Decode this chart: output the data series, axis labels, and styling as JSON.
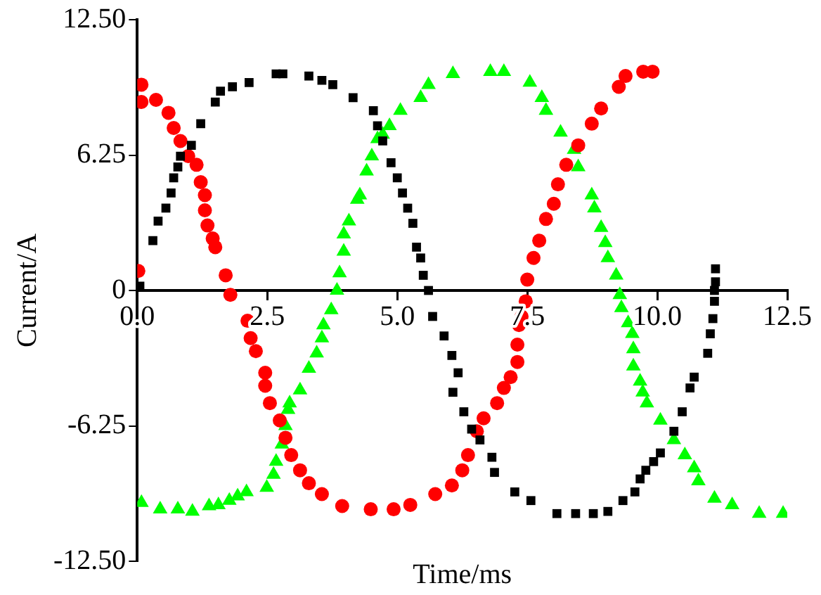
{
  "chart_data": {
    "type": "scatter",
    "xlabel": "Time/ms",
    "ylabel": "Current/A",
    "xlim": [
      0,
      12.5
    ],
    "ylim": [
      -12.5,
      12.5
    ],
    "xticks": [
      {
        "value": 0,
        "label": "0.0"
      },
      2.5,
      {
        "value": 5,
        "label": "5.0"
      },
      7.5,
      {
        "value": 10,
        "label": "10.0"
      },
      12.5
    ],
    "yticks": [
      {
        "value": -12.5,
        "label": "-12.50"
      },
      -6.25,
      0,
      6.25,
      {
        "value": 12.5,
        "label": "12.50"
      }
    ],
    "grid": false,
    "legend": false,
    "series": [
      {
        "color": "#000000",
        "marker": "square",
        "x": [
          0.05,
          0.3,
          0.4,
          0.55,
          0.65,
          0.7,
          0.78,
          0.83,
          1.04,
          1.22,
          1.5,
          1.6,
          1.83,
          2.15,
          2.67,
          2.8,
          3.3,
          3.55,
          3.76,
          4.15,
          4.54,
          4.62,
          4.72,
          4.88,
          5.0,
          5.1,
          5.2,
          5.3,
          5.37,
          5.45,
          5.5,
          5.6,
          5.68,
          5.9,
          6.05,
          6.17,
          6.07,
          6.28,
          6.43,
          6.59,
          6.82,
          6.87,
          7.26,
          7.57,
          8.07,
          8.43,
          8.77,
          9.05,
          9.34,
          9.57,
          9.67,
          9.78,
          9.93,
          10.06,
          10.32,
          10.48,
          10.63,
          10.71,
          10.97,
          11.02,
          11.07,
          11.1,
          11.1,
          11.12,
          11.12
        ],
        "values": [
          0.2,
          2.3,
          3.2,
          3.8,
          4.5,
          5.2,
          5.7,
          6.2,
          6.7,
          7.7,
          8.7,
          9.2,
          9.4,
          9.6,
          10.0,
          10.0,
          9.9,
          9.7,
          9.5,
          8.9,
          8.3,
          7.6,
          6.9,
          5.9,
          5.2,
          4.5,
          3.8,
          3.1,
          2.0,
          1.5,
          0.7,
          0,
          -1.2,
          -2.1,
          -3.0,
          -3.8,
          -4.7,
          -5.6,
          -6.4,
          -6.9,
          -7.7,
          -8.4,
          -9.3,
          -9.7,
          -10.3,
          -10.3,
          -10.3,
          -10.2,
          -9.7,
          -9.3,
          -8.7,
          -8.3,
          -7.9,
          -7.5,
          -6.5,
          -5.6,
          -4.5,
          -4.0,
          -2.9,
          -2.0,
          -1.3,
          -0.5,
          0,
          0.4,
          1.0
        ]
      },
      {
        "color": "#ff0000",
        "marker": "circle",
        "x": [
          0.02,
          0.08,
          0.08,
          0.36,
          0.6,
          0.7,
          0.83,
          0.98,
          1.14,
          1.22,
          1.3,
          1.3,
          1.35,
          1.45,
          1.5,
          1.7,
          1.79,
          2.12,
          2.18,
          2.28,
          2.46,
          2.46,
          2.55,
          2.74,
          2.85,
          2.96,
          3.13,
          3.3,
          3.55,
          3.94,
          4.49,
          4.93,
          5.25,
          5.73,
          6.05,
          6.25,
          6.36,
          6.53,
          6.66,
          6.92,
          7.05,
          7.18,
          7.31,
          7.31,
          7.34,
          7.39,
          7.47,
          7.5,
          7.62,
          7.73,
          7.86,
          8.01,
          8.09,
          8.25,
          8.48,
          8.74,
          8.92,
          9.26,
          9.39,
          9.73,
          9.91
        ],
        "values": [
          0.9,
          9.5,
          8.7,
          8.8,
          8.2,
          7.5,
          6.9,
          6.2,
          5.8,
          5.0,
          4.4,
          3.7,
          3.0,
          2.4,
          2.0,
          0.7,
          -0.2,
          -1.4,
          -2.2,
          -2.8,
          -3.8,
          -4.4,
          -5.2,
          -6.0,
          -6.8,
          -7.6,
          -8.3,
          -8.9,
          -9.4,
          -9.95,
          -10.1,
          -10.1,
          -9.9,
          -9.4,
          -9.0,
          -8.3,
          -7.6,
          -6.5,
          -5.9,
          -5.2,
          -4.5,
          -4.0,
          -3.3,
          -2.5,
          -1.6,
          -1.2,
          -0.5,
          0.5,
          1.5,
          2.3,
          3.3,
          4.0,
          4.9,
          5.8,
          6.7,
          7.7,
          8.4,
          9.4,
          9.9,
          10.1,
          10.1
        ]
      },
      {
        "color": "#00ff00",
        "marker": "triangle",
        "x": [
          0.08,
          0.44,
          0.78,
          1.06,
          1.38,
          1.56,
          1.77,
          1.93,
          2.1,
          2.49,
          2.62,
          2.67,
          2.78,
          2.85,
          2.9,
          2.93,
          3.13,
          3.3,
          3.45,
          3.55,
          3.58,
          3.73,
          3.84,
          3.89,
          3.97,
          3.97,
          4.07,
          4.23,
          4.28,
          4.41,
          4.51,
          4.62,
          4.72,
          4.85,
          5.06,
          5.45,
          5.6,
          6.07,
          6.79,
          7.05,
          7.55,
          7.78,
          7.86,
          8.14,
          8.4,
          8.48,
          8.74,
          8.79,
          8.92,
          9.0,
          9.05,
          9.21,
          9.28,
          9.31,
          9.44,
          9.52,
          9.54,
          9.54,
          9.67,
          9.72,
          9.8,
          10.06,
          10.32,
          10.53,
          10.71,
          10.79,
          11.1,
          11.44,
          11.96,
          12.42
        ],
        "values": [
          -9.8,
          -10.1,
          -10.1,
          -10.2,
          -9.95,
          -9.9,
          -9.7,
          -9.5,
          -9.3,
          -9.1,
          -8.5,
          -7.9,
          -7.1,
          -6.25,
          -5.5,
          -5.2,
          -4.6,
          -3.6,
          -2.9,
          -2.2,
          -1.6,
          -0.9,
          0,
          0.8,
          1.8,
          2.6,
          3.2,
          4.2,
          4.4,
          5.5,
          6.2,
          7.0,
          7.2,
          7.6,
          8.3,
          8.9,
          9.5,
          10.0,
          10.1,
          10.1,
          9.6,
          8.9,
          8.3,
          7.3,
          6.5,
          5.7,
          4.4,
          3.8,
          2.9,
          2.2,
          1.5,
          0.7,
          -0.2,
          -0.8,
          -1.5,
          -2.0,
          -2.7,
          -3.5,
          -4.2,
          -4.7,
          -5.2,
          -6.0,
          -6.9,
          -7.6,
          -8.2,
          -8.8,
          -9.6,
          -9.9,
          -10.3,
          -10.3
        ]
      }
    ]
  }
}
